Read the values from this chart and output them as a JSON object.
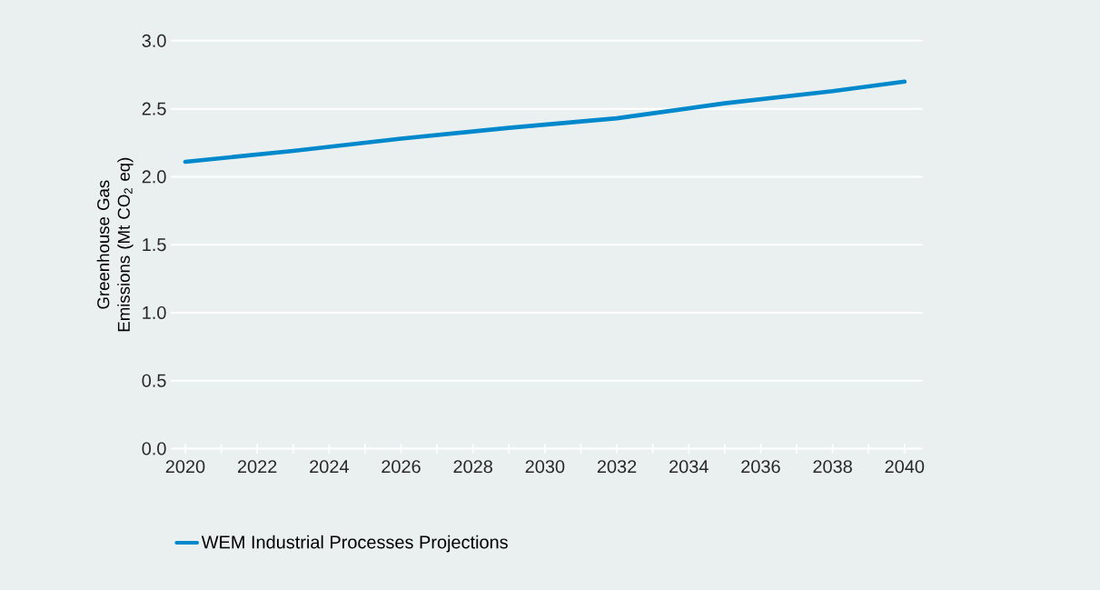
{
  "chart_data": {
    "type": "line",
    "ylabel": "Greenhouse Gas Emissions (Mt CO$_{2}$ eq)",
    "x": [
      2020,
      2023,
      2026,
      2029,
      2032,
      2035,
      2038,
      2040
    ],
    "series": [
      {
        "name": "WEM Industrial Processes Projections",
        "color": "#0088cc",
        "values": [
          2.11,
          2.19,
          2.28,
          2.36,
          2.43,
          2.54,
          2.63,
          2.7
        ]
      }
    ],
    "xlim": [
      2019.6,
      2040.5
    ],
    "ylim": [
      0,
      3.0
    ],
    "xticks": [
      2020,
      {
        "value": 2021,
        "label": null
      },
      2022,
      {
        "value": 2023,
        "label": null
      },
      2024,
      {
        "value": 2025,
        "label": null
      },
      2026,
      {
        "value": 2027,
        "label": null
      },
      2028,
      {
        "value": 2029,
        "label": null
      },
      2030,
      {
        "value": 2031,
        "label": null
      },
      2032,
      {
        "value": 2033,
        "label": null
      },
      2034,
      {
        "value": 2035,
        "label": null
      },
      2036,
      {
        "value": 2037,
        "label": null
      },
      2038,
      {
        "value": 2039,
        "label": null
      },
      2040
    ],
    "yticks": [
      {
        "value": 0,
        "label": "0.0"
      },
      {
        "value": 0.5,
        "label": "0.5"
      },
      {
        "value": 1,
        "label": "1.0"
      },
      {
        "value": 1.5,
        "label": "1.5"
      },
      {
        "value": 2,
        "label": "2.0"
      },
      {
        "value": 2.5,
        "label": "2.5"
      },
      {
        "value": 3,
        "label": "3.0"
      }
    ],
    "grid": "y",
    "legend": "bottom left",
    "marker": "none",
    "line_style": "solid"
  }
}
